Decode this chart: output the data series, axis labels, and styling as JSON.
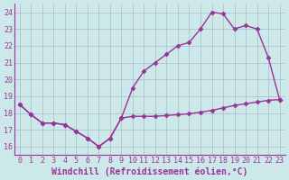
{
  "xlabel": "Windchill (Refroidissement éolien,°C)",
  "background_color": "#cce8e8",
  "line_color": "#993399",
  "grid_color": "#aabbcc",
  "hours": [
    0,
    1,
    2,
    3,
    4,
    5,
    6,
    7,
    8,
    9,
    10,
    11,
    12,
    13,
    14,
    15,
    16,
    17,
    18,
    19,
    20,
    21,
    22,
    23
  ],
  "temp": [
    18.5,
    17.9,
    17.4,
    17.4,
    17.3,
    16.9,
    16.5,
    16.0,
    16.5,
    17.7,
    19.5,
    20.5,
    21.0,
    21.5,
    22.0,
    22.2,
    23.0,
    24.0,
    23.9,
    23.0,
    23.2,
    23.0,
    21.3,
    18.8
  ],
  "windchill": [
    18.5,
    17.9,
    17.4,
    17.4,
    17.3,
    16.9,
    16.5,
    16.0,
    16.5,
    17.7,
    17.8,
    17.8,
    17.8,
    17.85,
    17.9,
    17.95,
    18.05,
    18.15,
    18.3,
    18.45,
    18.55,
    18.65,
    18.75,
    18.8
  ],
  "ylim": [
    15.5,
    24.5
  ],
  "yticks": [
    16,
    17,
    18,
    19,
    20,
    21,
    22,
    23,
    24
  ],
  "xticks": [
    0,
    1,
    2,
    3,
    4,
    5,
    6,
    7,
    8,
    9,
    10,
    11,
    12,
    13,
    14,
    15,
    16,
    17,
    18,
    19,
    20,
    21,
    22,
    23
  ],
  "marker": "D",
  "markersize": 2.5,
  "linewidth": 1.0,
  "xlabel_fontsize": 7,
  "tick_fontsize": 6,
  "fig_width": 3.2,
  "fig_height": 2.0,
  "dpi": 100
}
